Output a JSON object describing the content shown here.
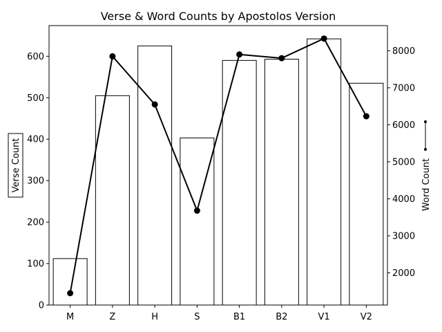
{
  "chart_data": {
    "type": "bar",
    "title": "Verse & Word Counts by Apostolos Version",
    "categories": [
      "M",
      "Z",
      "H",
      "S",
      "B1",
      "B2",
      "V1",
      "V2"
    ],
    "series": [
      {
        "axis": "left",
        "type": "bar",
        "values": [
          112,
          505,
          625,
          403,
          590,
          593,
          642,
          535
        ]
      },
      {
        "axis": "right",
        "type": "line",
        "values": [
          1450,
          7850,
          6550,
          3680,
          7900,
          7800,
          8330,
          6230
        ]
      }
    ],
    "ylabel": "Verse Count",
    "y2label": "Word Count",
    "ylim": [
      0,
      674
    ],
    "y2lim": [
      1130,
      8680
    ],
    "yticks": [
      0,
      100,
      200,
      300,
      400,
      500,
      600
    ],
    "y2ticks": [
      2000,
      3000,
      4000,
      5000,
      6000,
      7000,
      8000
    ],
    "grid": false,
    "colors": {
      "bar_fill": "#ffffff",
      "bar_edge": "#000000",
      "line": "#000000",
      "marker": "#000000"
    }
  }
}
